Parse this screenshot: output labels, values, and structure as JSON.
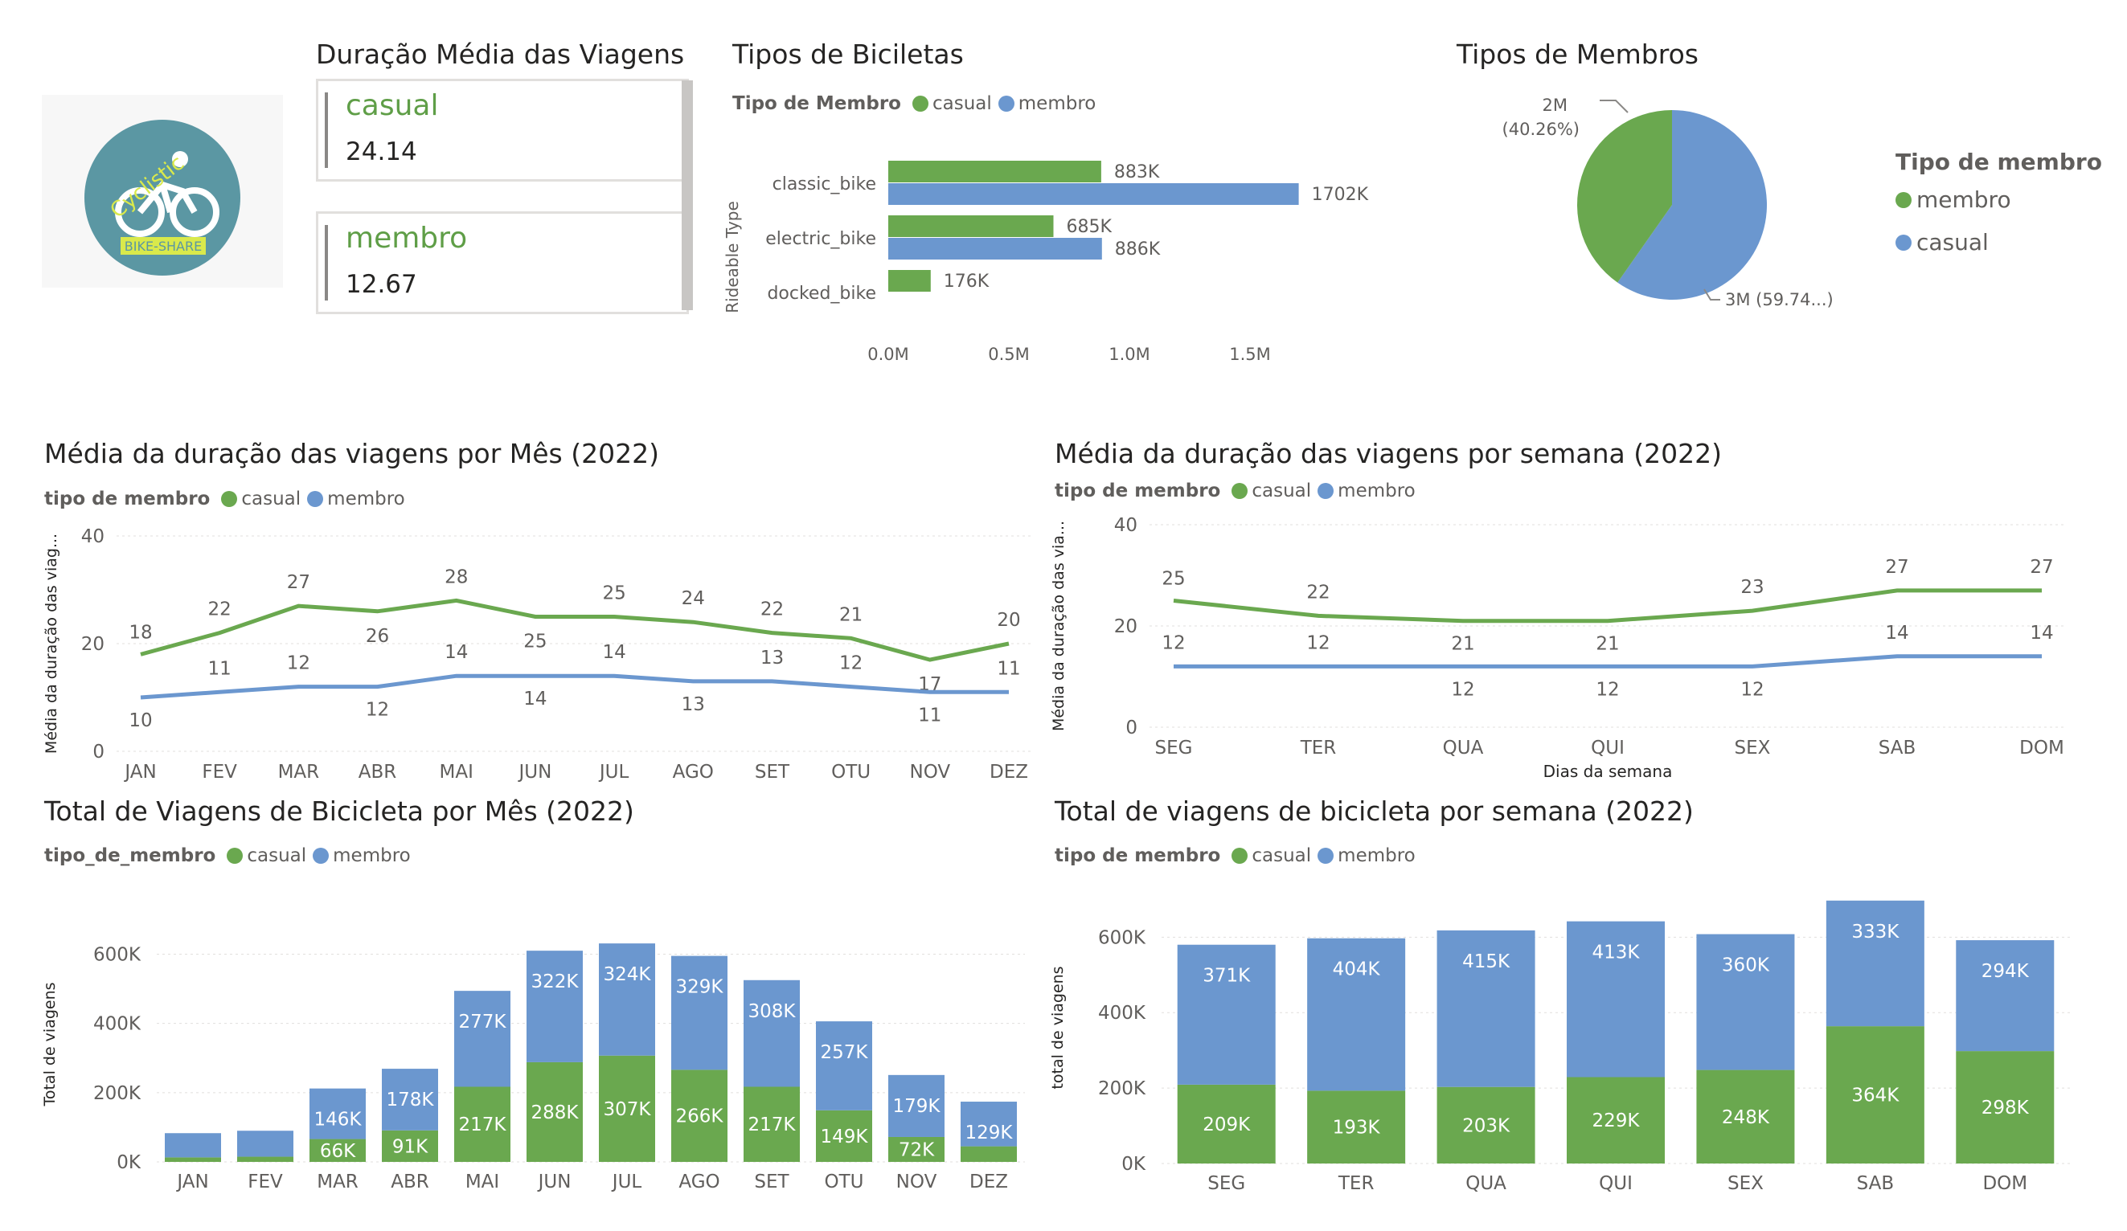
{
  "colors": {
    "casual": "#6aa84f",
    "membro": "#6b97cf"
  },
  "logo": {
    "top_text": "Cyclistic",
    "bottom_text": "BIKE-SHARE",
    "bg": "#5b97a3"
  },
  "duration_card": {
    "title": "Duração Média das Viagens",
    "items": [
      {
        "label": "casual",
        "value": "24.14"
      },
      {
        "label": "membro",
        "value": "12.67"
      }
    ]
  },
  "bike_types": {
    "title": "Tipos de Biciletas",
    "legend_title": "Tipo de Membro",
    "legend": [
      "casual",
      "membro"
    ],
    "ylabel": "Rideable Type",
    "xticks": [
      "0.0M",
      "0.5M",
      "1.0M",
      "1.5M"
    ]
  },
  "member_types": {
    "title": "Tipos de Membros",
    "legend_title": "Tipo de membro",
    "legend": [
      "membro",
      "casual"
    ],
    "label_small": [
      "2M",
      "(40.26%)"
    ],
    "label_large": "3M (59.74...)"
  },
  "month_duration": {
    "title": "Média da duração das viagens por Mês (2022)",
    "legend_title": "tipo de membro",
    "legend": [
      "casual",
      "membro"
    ],
    "ylabel": "Média da duração das viag..."
  },
  "week_duration": {
    "title": "Média da duração das viagens por semana (2022)",
    "legend_title": "tipo de membro",
    "legend": [
      "casual",
      "membro"
    ],
    "ylabel": "Média da duração das via...",
    "xlabel": "Dias da semana"
  },
  "month_trips": {
    "title": "Total de Viagens de Bicicleta por Mês (2022)",
    "legend_title": "tipo_de_membro",
    "legend": [
      "casual",
      "membro"
    ],
    "ylabel": "Total de viagens"
  },
  "week_trips": {
    "title": "Total de viagens de bicicleta por semana (2022)",
    "legend_title": "tipo de membro",
    "legend": [
      "casual",
      "membro"
    ],
    "ylabel": "total de viagens"
  },
  "chart_data": [
    {
      "id": "bike_types",
      "type": "bar",
      "orientation": "horizontal",
      "categories": [
        "classic_bike",
        "electric_bike",
        "docked_bike"
      ],
      "series": [
        {
          "name": "casual",
          "values": [
            883000,
            685000,
            176000
          ],
          "labels": [
            "883K",
            "685K",
            "176K"
          ]
        },
        {
          "name": "membro",
          "values": [
            1702000,
            886000,
            null
          ],
          "labels": [
            "1702K",
            "886K",
            ""
          ]
        }
      ],
      "xlim": [
        0,
        1800000
      ],
      "xticks": [
        0,
        500000,
        1000000,
        1500000
      ]
    },
    {
      "id": "member_types",
      "type": "pie",
      "slices": [
        {
          "name": "membro",
          "value": 59.74,
          "label": "3M (59.74...)"
        },
        {
          "name": "casual",
          "value": 40.26,
          "label": "2M (40.26%)"
        }
      ]
    },
    {
      "id": "month_duration",
      "type": "line",
      "categories": [
        "JAN",
        "FEV",
        "MAR",
        "ABR",
        "MAI",
        "JUN",
        "JUL",
        "AGO",
        "SET",
        "OTU",
        "NOV",
        "DEZ"
      ],
      "series": [
        {
          "name": "casual",
          "values": [
            18,
            22,
            27,
            26,
            28,
            25,
            25,
            24,
            22,
            21,
            17,
            20
          ]
        },
        {
          "name": "membro",
          "values": [
            10,
            11,
            12,
            12,
            14,
            14,
            14,
            13,
            13,
            12,
            11,
            11
          ]
        }
      ],
      "ylim": [
        0,
        40
      ],
      "yticks": [
        0,
        20,
        40
      ]
    },
    {
      "id": "week_duration",
      "type": "line",
      "categories": [
        "SEG",
        "TER",
        "QUA",
        "QUI",
        "SEX",
        "SAB",
        "DOM"
      ],
      "series": [
        {
          "name": "casual",
          "values": [
            25,
            22,
            21,
            21,
            23,
            27,
            27
          ]
        },
        {
          "name": "membro",
          "values": [
            12,
            12,
            12,
            12,
            12,
            14,
            14
          ]
        }
      ],
      "ylim": [
        0,
        40
      ],
      "yticks": [
        0,
        20,
        40
      ]
    },
    {
      "id": "month_trips",
      "type": "bar",
      "stacked": true,
      "categories": [
        "JAN",
        "FEV",
        "MAR",
        "ABR",
        "MAI",
        "JUN",
        "JUL",
        "AGO",
        "SET",
        "OTU",
        "NOV",
        "DEZ"
      ],
      "series": [
        {
          "name": "casual",
          "values": [
            13000,
            15000,
            66000,
            91000,
            217000,
            288000,
            307000,
            266000,
            217000,
            149000,
            72000,
            45000
          ],
          "labels": [
            "",
            "",
            "66K",
            "91K",
            "217K",
            "288K",
            "307K",
            "266K",
            "217K",
            "149K",
            "72K",
            ""
          ]
        },
        {
          "name": "membro",
          "values": [
            70000,
            75000,
            146000,
            178000,
            277000,
            322000,
            324000,
            329000,
            308000,
            257000,
            179000,
            129000
          ],
          "labels": [
            "",
            "",
            "146K",
            "178K",
            "277K",
            "322K",
            "324K",
            "329K",
            "308K",
            "257K",
            "179K",
            "129K"
          ]
        }
      ],
      "ylim": [
        0,
        680000
      ],
      "yticks": [
        0,
        200000,
        400000,
        600000
      ],
      "ytick_labels": [
        "0K",
        "200K",
        "400K",
        "600K"
      ]
    },
    {
      "id": "week_trips",
      "type": "bar",
      "stacked": true,
      "categories": [
        "SEG",
        "TER",
        "QUA",
        "QUI",
        "SEX",
        "SAB",
        "DOM"
      ],
      "series": [
        {
          "name": "casual",
          "values": [
            209000,
            193000,
            203000,
            229000,
            248000,
            364000,
            298000
          ],
          "labels": [
            "209K",
            "193K",
            "203K",
            "229K",
            "248K",
            "364K",
            "298K"
          ]
        },
        {
          "name": "membro",
          "values": [
            371000,
            404000,
            415000,
            413000,
            360000,
            333000,
            294000
          ],
          "labels": [
            "371K",
            "404K",
            "415K",
            "413K",
            "360K",
            "333K",
            "294K"
          ]
        }
      ],
      "ylim": [
        0,
        720000
      ],
      "yticks": [
        0,
        200000,
        400000,
        600000
      ],
      "ytick_labels": [
        "0K",
        "200K",
        "400K",
        "600K"
      ]
    }
  ]
}
